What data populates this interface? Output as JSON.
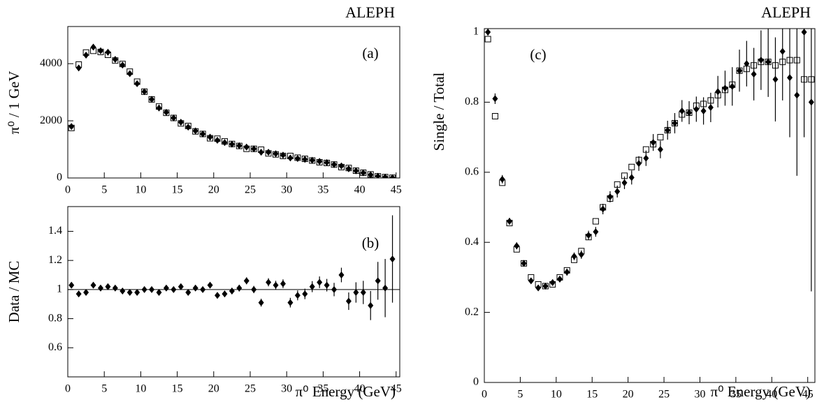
{
  "chart_data": [
    {
      "type": "scatter",
      "panel_label": "(a)",
      "experiment": "ALEPH",
      "y_label": "π⁰ / 1 GeV",
      "xlim": [
        0,
        45.5
      ],
      "xticks": [
        0,
        5,
        10,
        15,
        20,
        25,
        30,
        35,
        40,
        45
      ],
      "ylim": [
        0,
        5300
      ],
      "yticks": [
        0,
        2000,
        4000
      ],
      "x": [
        0.5,
        1.5,
        2.5,
        3.5,
        4.5,
        5.5,
        6.5,
        7.5,
        8.5,
        9.5,
        10.5,
        11.5,
        12.5,
        13.5,
        14.5,
        15.5,
        16.5,
        17.5,
        18.5,
        19.5,
        20.5,
        21.5,
        22.5,
        23.5,
        24.5,
        25.5,
        26.5,
        27.5,
        28.5,
        29.5,
        30.5,
        31.5,
        32.5,
        33.5,
        34.5,
        35.5,
        36.5,
        37.5,
        38.5,
        39.5,
        40.5,
        41.5,
        42.5,
        43.5,
        44.5
      ],
      "series": [
        {
          "marker": "open-square",
          "color": "#000000",
          "values": [
            1750,
            3970,
            4390,
            4450,
            4410,
            4310,
            4110,
            3990,
            3720,
            3370,
            3020,
            2750,
            2500,
            2280,
            2100,
            1910,
            1820,
            1630,
            1540,
            1390,
            1375,
            1280,
            1190,
            1120,
            1020,
            1020,
            990,
            860,
            825,
            770,
            770,
            710,
            670,
            610,
            550,
            525,
            470,
            380,
            350,
            255,
            185,
            125,
            57,
            30,
            8
          ]
        },
        {
          "marker": "diamond",
          "color": "#000000",
          "values": [
            1800,
            3850,
            4300,
            4580,
            4450,
            4400,
            4150,
            3950,
            3650,
            3300,
            3020,
            2750,
            2450,
            2300,
            2100,
            1950,
            1780,
            1650,
            1540,
            1430,
            1320,
            1240,
            1180,
            1130,
            1080,
            1020,
            900,
            900,
            850,
            800,
            700,
            680,
            650,
            620,
            580,
            540,
            470,
            420,
            320,
            250,
            180,
            110,
            60,
            30,
            10
          ]
        }
      ]
    },
    {
      "type": "scatter",
      "panel_label": "(b)",
      "y_label": "Data / MC",
      "x_label": "π⁰ Energy (GeV)",
      "xlim": [
        0,
        45.5
      ],
      "xticks": [
        0,
        5,
        10,
        15,
        20,
        25,
        30,
        35,
        40,
        45
      ],
      "ylim": [
        0.4,
        1.57
      ],
      "yticks": [
        0.6,
        0.8,
        1,
        1.2,
        1.4
      ],
      "reference_line": 1,
      "x": [
        0.5,
        1.5,
        2.5,
        3.5,
        4.5,
        5.5,
        6.5,
        7.5,
        8.5,
        9.5,
        10.5,
        11.5,
        12.5,
        13.5,
        14.5,
        15.5,
        16.5,
        17.5,
        18.5,
        19.5,
        20.5,
        21.5,
        22.5,
        23.5,
        24.5,
        25.5,
        26.5,
        27.5,
        28.5,
        29.5,
        30.5,
        31.5,
        32.5,
        33.5,
        34.5,
        35.5,
        36.5,
        37.5,
        38.5,
        39.5,
        40.5,
        41.5,
        42.5,
        43.5,
        44.5
      ],
      "series": [
        {
          "marker": "diamond",
          "color": "#000000",
          "values": [
            1.03,
            0.97,
            0.98,
            1.03,
            1.01,
            1.02,
            1.01,
            0.99,
            0.98,
            0.98,
            1.0,
            1.0,
            0.98,
            1.01,
            1.0,
            1.02,
            0.98,
            1.01,
            1.0,
            1.03,
            0.96,
            0.97,
            0.99,
            1.01,
            1.06,
            1.0,
            0.91,
            1.05,
            1.03,
            1.04,
            0.91,
            0.96,
            0.97,
            1.02,
            1.05,
            1.03,
            1.0,
            1.1,
            0.92,
            0.98,
            0.98,
            0.89,
            1.06,
            1.01,
            1.21
          ],
          "errors": [
            0.015,
            0.012,
            0.012,
            0.01,
            0.01,
            0.01,
            0.01,
            0.01,
            0.012,
            0.012,
            0.012,
            0.012,
            0.014,
            0.014,
            0.015,
            0.016,
            0.017,
            0.018,
            0.019,
            0.02,
            0.02,
            0.021,
            0.022,
            0.023,
            0.024,
            0.025,
            0.027,
            0.028,
            0.03,
            0.03,
            0.033,
            0.034,
            0.036,
            0.038,
            0.04,
            0.043,
            0.046,
            0.05,
            0.06,
            0.07,
            0.08,
            0.1,
            0.13,
            0.2,
            0.3
          ]
        }
      ]
    },
    {
      "type": "scatter",
      "panel_label": "(c)",
      "experiment": "ALEPH",
      "y_label": "Single / Total",
      "x_label": "π⁰ Energy (GeV)",
      "xlim": [
        0,
        46
      ],
      "xticks": [
        0,
        5,
        10,
        15,
        20,
        25,
        30,
        35,
        40,
        45
      ],
      "ylim": [
        0,
        1.01
      ],
      "yticks": [
        0,
        0.2,
        0.4,
        0.6,
        0.8,
        1
      ],
      "x": [
        0.5,
        1.5,
        2.5,
        3.5,
        4.5,
        5.5,
        6.5,
        7.5,
        8.5,
        9.5,
        10.5,
        11.5,
        12.5,
        13.5,
        14.5,
        15.5,
        16.5,
        17.5,
        18.5,
        19.5,
        20.5,
        21.5,
        22.5,
        23.5,
        24.5,
        25.5,
        26.5,
        27.5,
        28.5,
        29.5,
        30.5,
        31.5,
        32.5,
        33.5,
        34.5,
        35.5,
        36.5,
        37.5,
        38.5,
        39.5,
        40.5,
        41.5,
        42.5,
        43.5,
        44.5,
        45.5
      ],
      "series": [
        {
          "marker": "open-square",
          "color": "#000000",
          "values": [
            0.98,
            0.76,
            0.57,
            0.455,
            0.38,
            0.34,
            0.3,
            0.28,
            0.275,
            0.28,
            0.3,
            0.32,
            0.35,
            0.375,
            0.415,
            0.46,
            0.5,
            0.525,
            0.565,
            0.59,
            0.615,
            0.635,
            0.665,
            0.68,
            0.7,
            0.72,
            0.74,
            0.765,
            0.77,
            0.79,
            0.795,
            0.805,
            0.82,
            0.835,
            0.85,
            0.89,
            0.895,
            0.905,
            0.915,
            0.915,
            0.905,
            0.915,
            0.92,
            0.92,
            0.865,
            0.865
          ]
        },
        {
          "marker": "diamond",
          "color": "#000000",
          "values": [
            1.0,
            0.81,
            0.58,
            0.46,
            0.39,
            0.34,
            0.29,
            0.27,
            0.275,
            0.285,
            0.295,
            0.315,
            0.36,
            0.365,
            0.42,
            0.43,
            0.495,
            0.53,
            0.545,
            0.57,
            0.585,
            0.625,
            0.64,
            0.685,
            0.665,
            0.72,
            0.74,
            0.775,
            0.77,
            0.78,
            0.775,
            0.785,
            0.83,
            0.84,
            0.845,
            0.89,
            0.91,
            0.88,
            0.92,
            0.915,
            0.865,
            0.945,
            0.87,
            0.82,
            1.0,
            0.8
          ],
          "errors": [
            0.01,
            0.015,
            0.012,
            0.01,
            0.01,
            0.008,
            0.008,
            0.008,
            0.008,
            0.009,
            0.009,
            0.01,
            0.011,
            0.012,
            0.013,
            0.014,
            0.015,
            0.016,
            0.017,
            0.018,
            0.02,
            0.021,
            0.022,
            0.024,
            0.025,
            0.027,
            0.029,
            0.031,
            0.033,
            0.036,
            0.039,
            0.042,
            0.045,
            0.05,
            0.055,
            0.06,
            0.065,
            0.075,
            0.085,
            0.1,
            0.12,
            0.14,
            0.17,
            0.23,
            0.3,
            0.54
          ]
        }
      ]
    }
  ]
}
